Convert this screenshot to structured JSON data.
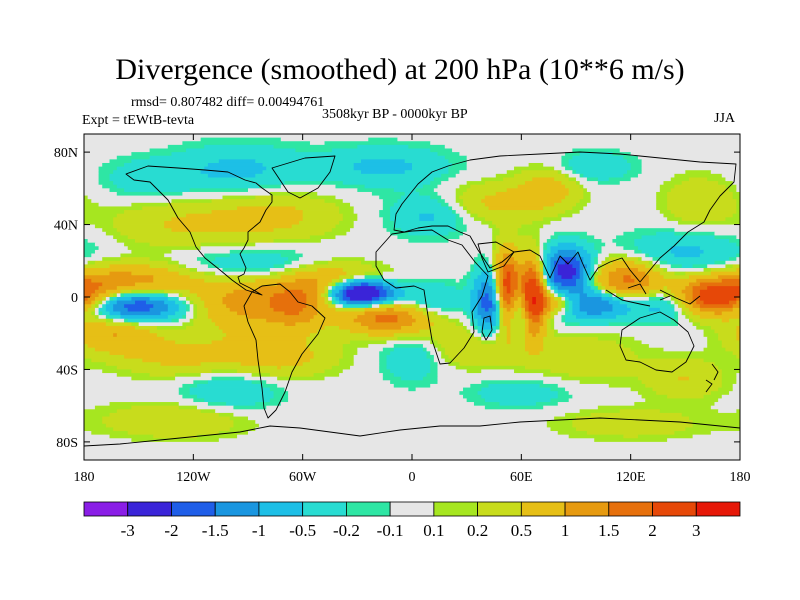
{
  "chart_data": {
    "type": "heatmap",
    "title": "Divergence (smoothed) at 200 hPa (10**6 m/s)",
    "stats_text": "rmsd= 0.807482 diff= 0.00494761",
    "experiment_text": "Expt = tEWtB-tevta",
    "period_text": "3508kyr BP - 0000kyr BP",
    "season_text": "JJA",
    "xlim": [
      -180,
      180
    ],
    "ylim": [
      -90,
      90
    ],
    "x_ticks": [
      {
        "value": -180,
        "label": "180"
      },
      {
        "value": -120,
        "label": "120W"
      },
      {
        "value": -60,
        "label": "60W"
      },
      {
        "value": 0,
        "label": "0"
      },
      {
        "value": 60,
        "label": "60E"
      },
      {
        "value": 120,
        "label": "120E"
      },
      {
        "value": 180,
        "label": "180"
      }
    ],
    "y_ticks": [
      {
        "value": 80,
        "label": "80N"
      },
      {
        "value": 40,
        "label": "40N"
      },
      {
        "value": 0,
        "label": "0"
      },
      {
        "value": -40,
        "label": "40S"
      },
      {
        "value": -80,
        "label": "80S"
      }
    ],
    "colorbar": {
      "colors": [
        "#8a1ee6",
        "#3a24d8",
        "#1f5ee8",
        "#1a96e0",
        "#1dbfe6",
        "#28dcd2",
        "#2ee6a4",
        "#e6e6e6",
        "#a6e620",
        "#c8dc1c",
        "#e6bf16",
        "#e69a10",
        "#e6700c",
        "#e64808",
        "#e61808"
      ],
      "labels": [
        "-3",
        "-2",
        "-1.5",
        "-1",
        "-0.5",
        "-0.2",
        "-0.1",
        "0.1",
        "0.2",
        "0.5",
        "1",
        "1.5",
        "2",
        "3"
      ]
    },
    "features": [
      {
        "lon": -28,
        "lat": 2,
        "sx": 12,
        "sy": 5,
        "amp": -3.8
      },
      {
        "lon": -47,
        "lat": 9,
        "sx": 22,
        "sy": 8,
        "amp": 1.4
      },
      {
        "lon": -12,
        "lat": -11,
        "sx": 18,
        "sy": 7,
        "amp": 1.8
      },
      {
        "lon": 8,
        "lat": -3,
        "sx": 14,
        "sy": 7,
        "amp": -0.8
      },
      {
        "lon": -153,
        "lat": -5,
        "sx": 18,
        "sy": 6,
        "amp": -2.2
      },
      {
        "lon": -152,
        "lat": 9,
        "sx": 28,
        "sy": 7,
        "amp": 1.3
      },
      {
        "lon": -163,
        "lat": -20,
        "sx": 16,
        "sy": 8,
        "amp": 1.0
      },
      {
        "lon": -92,
        "lat": -2,
        "sx": 20,
        "sy": 12,
        "amp": 1.2
      },
      {
        "lon": -82,
        "lat": 15,
        "sx": 35,
        "sy": 8,
        "amp": -0.9
      },
      {
        "lon": -63,
        "lat": -6,
        "sx": 12,
        "sy": 9,
        "amp": 1.1
      },
      {
        "lon": -74,
        "lat": -33,
        "sx": 22,
        "sy": 8,
        "amp": 0.7
      },
      {
        "lon": -128,
        "lat": -33,
        "sx": 22,
        "sy": 8,
        "amp": 0.6
      },
      {
        "lon": -128,
        "lat": 40,
        "sx": 28,
        "sy": 10,
        "amp": 0.5
      },
      {
        "lon": -75,
        "lat": 45,
        "sx": 25,
        "sy": 10,
        "amp": 0.6
      },
      {
        "lon": -95,
        "lat": 70,
        "sx": 25,
        "sy": 10,
        "amp": -0.6
      },
      {
        "lon": -145,
        "lat": 65,
        "sx": 18,
        "sy": 8,
        "amp": -0.4
      },
      {
        "lon": -15,
        "lat": 72,
        "sx": 25,
        "sy": 8,
        "amp": -0.6
      },
      {
        "lon": 52,
        "lat": 4,
        "sx": 5,
        "sy": 14,
        "amp": 2.8
      },
      {
        "lon": 43,
        "lat": -3,
        "sx": 6,
        "sy": 12,
        "amp": -2.0
      },
      {
        "lon": 66,
        "lat": 0,
        "sx": 5,
        "sy": 14,
        "amp": 3.2
      },
      {
        "lon": 60,
        "lat": -6,
        "sx": 5,
        "sy": 10,
        "amp": -1.4
      },
      {
        "lon": 85,
        "lat": 14,
        "sx": 9,
        "sy": 9,
        "amp": -2.4
      },
      {
        "lon": 97,
        "lat": -4,
        "sx": 16,
        "sy": 6,
        "amp": -1.8
      },
      {
        "lon": 80,
        "lat": -3,
        "sx": 10,
        "sy": 5,
        "amp": 1.8
      },
      {
        "lon": 118,
        "lat": 9,
        "sx": 14,
        "sy": 8,
        "amp": 1.7
      },
      {
        "lon": 140,
        "lat": -3,
        "sx": 12,
        "sy": 7,
        "amp": -1.1
      },
      {
        "lon": 167,
        "lat": 0,
        "sx": 18,
        "sy": 7,
        "amp": 2.6
      },
      {
        "lon": 150,
        "lat": 24,
        "sx": 25,
        "sy": 9,
        "amp": -0.6
      },
      {
        "lon": 10,
        "lat": 45,
        "sx": 16,
        "sy": 8,
        "amp": -0.6
      },
      {
        "lon": 45,
        "lat": 52,
        "sx": 20,
        "sy": 8,
        "amp": 0.6
      },
      {
        "lon": 75,
        "lat": 60,
        "sx": 12,
        "sy": 8,
        "amp": 0.7
      },
      {
        "lon": 100,
        "lat": 72,
        "sx": 15,
        "sy": 6,
        "amp": -0.5
      },
      {
        "lon": 158,
        "lat": 52,
        "sx": 14,
        "sy": 10,
        "amp": 0.5
      },
      {
        "lon": 0,
        "lat": -33,
        "sx": 12,
        "sy": 10,
        "amp": -0.5
      },
      {
        "lon": 34,
        "lat": -28,
        "sx": 20,
        "sy": 8,
        "amp": 0.5
      },
      {
        "lon": 95,
        "lat": -34,
        "sx": 22,
        "sy": 10,
        "amp": 0.4
      },
      {
        "lon": 150,
        "lat": -45,
        "sx": 15,
        "sy": 8,
        "amp": 0.5
      },
      {
        "lon": -100,
        "lat": -52,
        "sx": 20,
        "sy": 8,
        "amp": -0.5
      },
      {
        "lon": 60,
        "lat": -53,
        "sx": 20,
        "sy": 6,
        "amp": -0.4
      },
      {
        "lon": -130,
        "lat": -68,
        "sx": 28,
        "sy": 7,
        "amp": 0.5
      },
      {
        "lon": 120,
        "lat": -70,
        "sx": 28,
        "sy": 6,
        "amp": 0.4
      }
    ]
  }
}
